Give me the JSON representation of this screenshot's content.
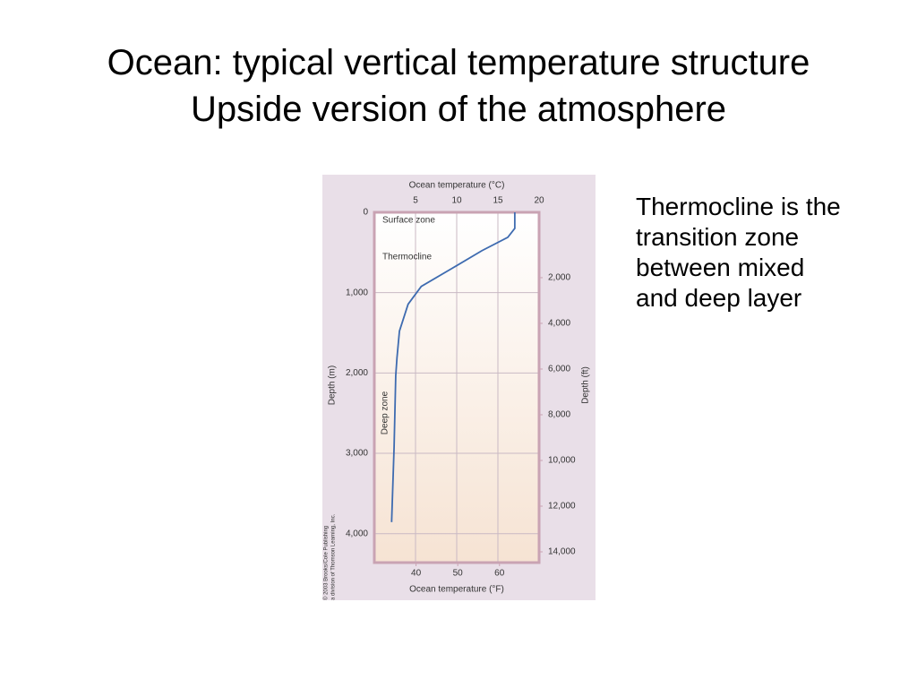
{
  "title_lines": [
    "Ocean: typical vertical temperature structure",
    "Upside version of the atmosphere"
  ],
  "side_text": "Thermocline is the transition zone between mixed and deep layer",
  "chart_data": {
    "type": "line",
    "x_title": "Ocean temperature (°C)",
    "x2_title": "Ocean temperature (°F)",
    "y_title": "Depth (m)",
    "y2_title": "Depth (ft)",
    "annotations": [
      "Surface zone",
      "Thermocline",
      "Deep zone"
    ],
    "credit": [
      "© 2003 Brooks/Cole Publishing",
      "a division of Thomson Learning, Inc."
    ],
    "x": [
      17.05,
      17.05,
      16.2,
      13.05,
      9.4,
      5.7,
      4.1,
      3.05,
      2.75,
      2.6,
      2.4,
      2.1
    ],
    "series": [
      {
        "color": "#3e6bb0",
        "values": [
          0,
          200,
          311,
          478,
          700,
          922,
          1144,
          1478,
          1811,
          2033,
          2922,
          3856
        ]
      }
    ],
    "xlim": [
      0,
      20
    ],
    "xticks": [
      5,
      10,
      15,
      20
    ],
    "x2lim": [
      30,
      69.5
    ],
    "x2ticks": [
      40,
      50,
      60
    ],
    "ylim": [
      0,
      4360
    ],
    "yticks": [
      0,
      {
        "value": 1000,
        "label": "1,000"
      },
      {
        "value": 2000,
        "label": "2,000"
      },
      {
        "value": 3000,
        "label": "3,000"
      },
      {
        "value": 4000,
        "label": "4,000"
      }
    ],
    "y2lim": [
      -860,
      14470
    ],
    "y2ticks": [
      {
        "value": 2000,
        "label": "2,000"
      },
      {
        "value": 4000,
        "label": "4,000"
      },
      {
        "value": 6000,
        "label": "6,000"
      },
      {
        "value": 8000,
        "label": "8,000"
      },
      {
        "value": 10000,
        "label": "10,000"
      },
      {
        "value": 12000,
        "label": "12,000"
      },
      {
        "value": 14000,
        "label": "14,000"
      }
    ],
    "y_inverted": true,
    "grid": true
  }
}
